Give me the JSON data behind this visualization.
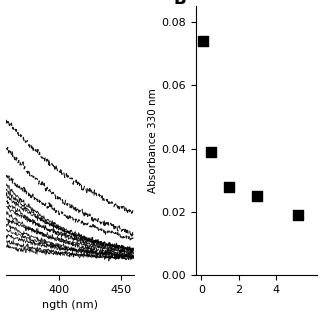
{
  "panel_B": {
    "label": "B",
    "x": [
      0.1,
      0.5,
      1.5,
      3.0,
      5.2
    ],
    "y": [
      0.074,
      0.039,
      0.028,
      0.025,
      0.019
    ],
    "xlabel": "",
    "ylabel": "Absorbance 330 nm",
    "xlim": [
      -0.3,
      6.2
    ],
    "ylim": [
      0.0,
      0.085
    ],
    "yticks": [
      0.0,
      0.02,
      0.04,
      0.06,
      0.08
    ],
    "xticks": [
      0,
      2,
      4
    ],
    "marker": "s",
    "markersize": 7,
    "color": "black"
  },
  "panel_A": {
    "xlabel": "ngth (nm)",
    "ylabel": "",
    "xlim": [
      358,
      460
    ],
    "ylim": [
      -0.001,
      0.018
    ],
    "xticks": [
      400,
      450
    ],
    "num_solid_lines": 12,
    "num_dashed_lines": 3,
    "background_color": "#ffffff"
  }
}
